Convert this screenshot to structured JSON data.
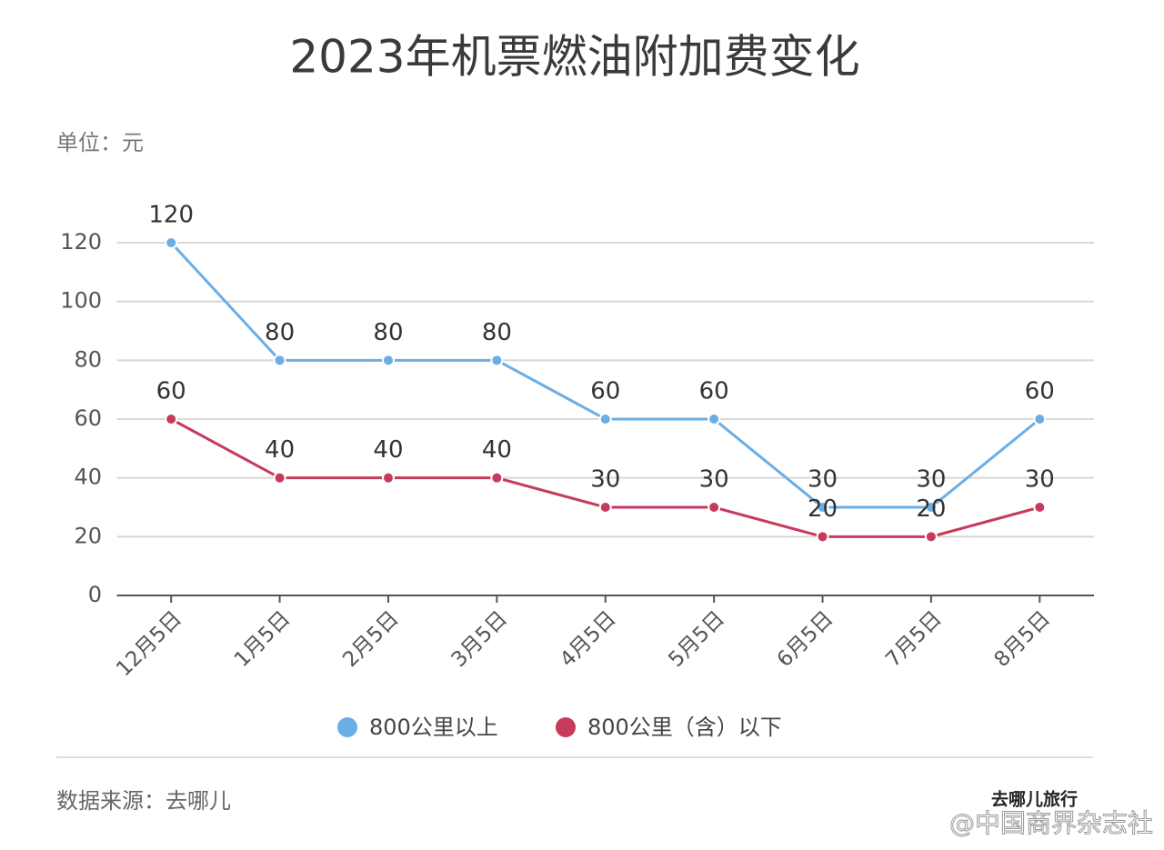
{
  "chart_data": {
    "type": "line",
    "title": "2023年机票燃油附加费变化",
    "ylabel": "单位：元",
    "categories": [
      "12月5日",
      "1月5日",
      "2月5日",
      "3月5日",
      "4月5日",
      "5月5日",
      "6月5日",
      "7月5日",
      "8月5日"
    ],
    "series": [
      {
        "name": "800公里以上",
        "color": "#6aaee6",
        "values": [
          120,
          80,
          80,
          80,
          60,
          60,
          30,
          30,
          60
        ]
      },
      {
        "name": "800公里（含）以下",
        "color": "#c63a5c",
        "values": [
          60,
          40,
          40,
          40,
          30,
          30,
          20,
          20,
          30
        ]
      }
    ],
    "ylim": [
      0,
      120
    ],
    "yticks": [
      0,
      20,
      40,
      60,
      80,
      100,
      120
    ],
    "grid": true,
    "legend": "bottom"
  },
  "footer": {
    "source": "数据来源：去哪儿",
    "logo": "去哪儿旅行",
    "watermark": "@中国商界杂志社"
  }
}
